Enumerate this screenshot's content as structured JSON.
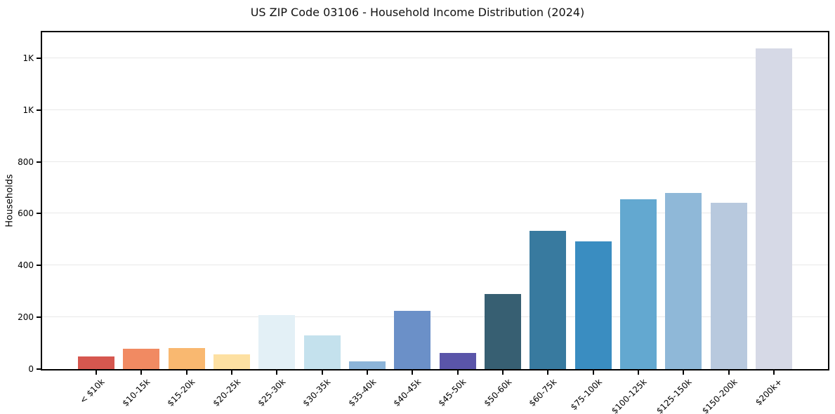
{
  "chart_data": {
    "type": "bar",
    "title": "US ZIP Code 03106 - Household Income Distribution (2024)",
    "xlabel": "",
    "ylabel": "Households",
    "ylim": [
      0,
      1300
    ],
    "grid": true,
    "legend_position": "none",
    "yticks": [
      {
        "value": 0,
        "label": "0"
      },
      {
        "value": 200,
        "label": "200"
      },
      {
        "value": 400,
        "label": "400"
      },
      {
        "value": 600,
        "label": "600"
      },
      {
        "value": 800,
        "label": "800"
      },
      {
        "value": 1000,
        "label": "1K"
      },
      {
        "value": 1200,
        "label": "1K"
      }
    ],
    "categories": [
      "< $10k",
      "$10-15k",
      "$15-20k",
      "$20-25k",
      "$25-30k",
      "$30-35k",
      "$35-40k",
      "$40-45k",
      "$45-50k",
      "$50-60k",
      "$60-75k",
      "$75-100k",
      "$100-125k",
      "$125-150k",
      "$150-200k",
      "$200k+"
    ],
    "values": [
      50,
      78,
      81,
      56,
      209,
      130,
      31,
      225,
      62,
      291,
      534,
      494,
      655,
      680,
      643,
      1237
    ],
    "bar_colors": [
      "#d6574f",
      "#f18a62",
      "#f9b870",
      "#fde0a2",
      "#e3f0f6",
      "#c4e1ed",
      "#8cb4d9",
      "#6b90c8",
      "#5a55a9",
      "#375f72",
      "#387a9f",
      "#3a8dc1",
      "#63a8d0",
      "#8fb8d8",
      "#b8c9de",
      "#d6d9e6"
    ],
    "axis_color": "#000000",
    "grid_color": "#e8e8e8",
    "background_color": "#ffffff"
  }
}
